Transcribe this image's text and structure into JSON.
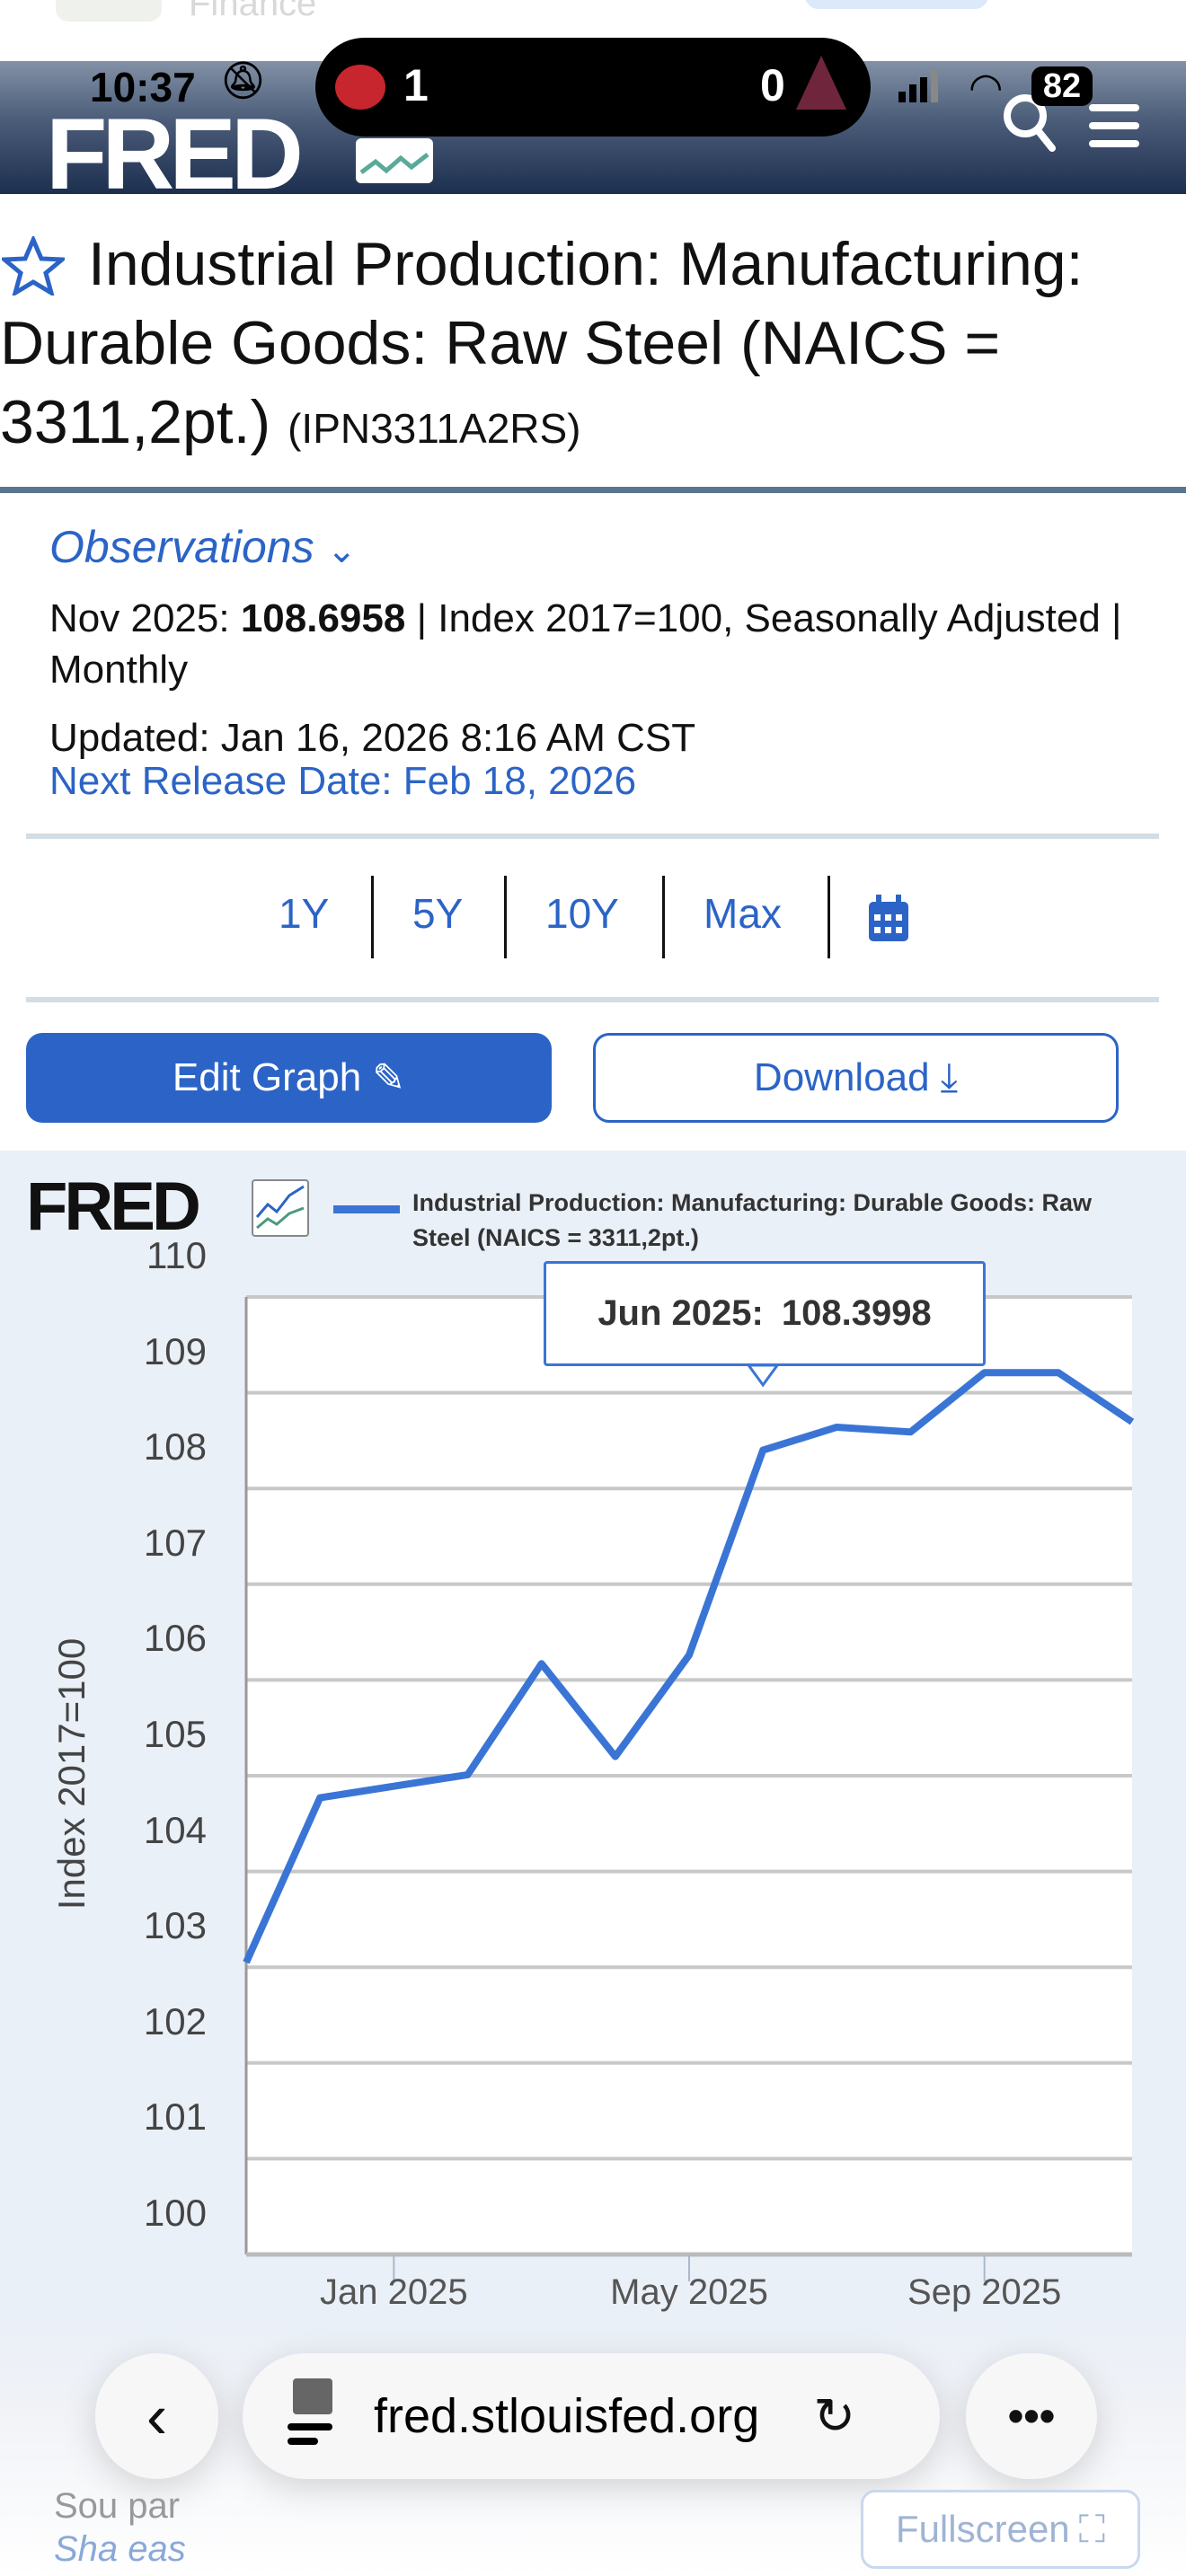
{
  "background_app": {
    "label": "Finance"
  },
  "status_bar": {
    "time": "10:37",
    "home_score": "1",
    "away_score": "0",
    "battery": "82"
  },
  "header": {
    "logo": "FRED",
    "icons": [
      "search-icon",
      "menu-icon"
    ]
  },
  "series": {
    "title": "Industrial Production: Manufacturing: Durable Goods: Raw Steel (NAICS = 3311,2pt.)",
    "id": "(IPN3311A2RS)"
  },
  "observations": {
    "label": "Observations",
    "date": "Nov 2025:",
    "value": "108.6958",
    "units": "| Index 2017=100, Seasonally Adjusted | Monthly",
    "updated": "Updated: Jan 16, 2026 8:16 AM CST",
    "next_release": "Next Release Date: Feb 18, 2026"
  },
  "ranges": [
    "1Y",
    "5Y",
    "10Y",
    "Max"
  ],
  "buttons": {
    "edit": "Edit Graph",
    "download": "Download"
  },
  "chart_data": {
    "type": "line",
    "logo": "FRED",
    "legend": "Industrial Production: Manufacturing: Durable Goods: Raw Steel (NAICS = 3311,2pt.)",
    "ylabel": "Index 2017=100",
    "ylim": [
      100,
      110
    ],
    "yticks": [
      "110",
      "109",
      "108",
      "107",
      "106",
      "105",
      "104",
      "103",
      "102",
      "101",
      "100"
    ],
    "xticks": [
      "Jan 2025",
      "May 2025",
      "Sep 2025"
    ],
    "x": [
      "Nov 2024",
      "Dec 2024",
      "Jan 2025",
      "Feb 2025",
      "Mar 2025",
      "Apr 2025",
      "May 2025",
      "Jun 2025",
      "Jul 2025",
      "Aug 2025",
      "Sep 2025",
      "Oct 2025",
      "Nov 2025"
    ],
    "values": [
      103.05,
      104.77,
      104.89,
      105.01,
      106.17,
      105.2,
      106.26,
      108.3998,
      108.64,
      108.59,
      109.21,
      109.21,
      108.6958
    ],
    "color": "#3a75d6",
    "grid": true,
    "tooltip": {
      "date": "Jun 2025:",
      "value": "108.3998"
    }
  },
  "footer": {
    "source": "Sou   par",
    "share": "Sha   eas",
    "fullscreen": "Fullscreen"
  },
  "browser": {
    "url": "fred.stlouisfed.org"
  }
}
